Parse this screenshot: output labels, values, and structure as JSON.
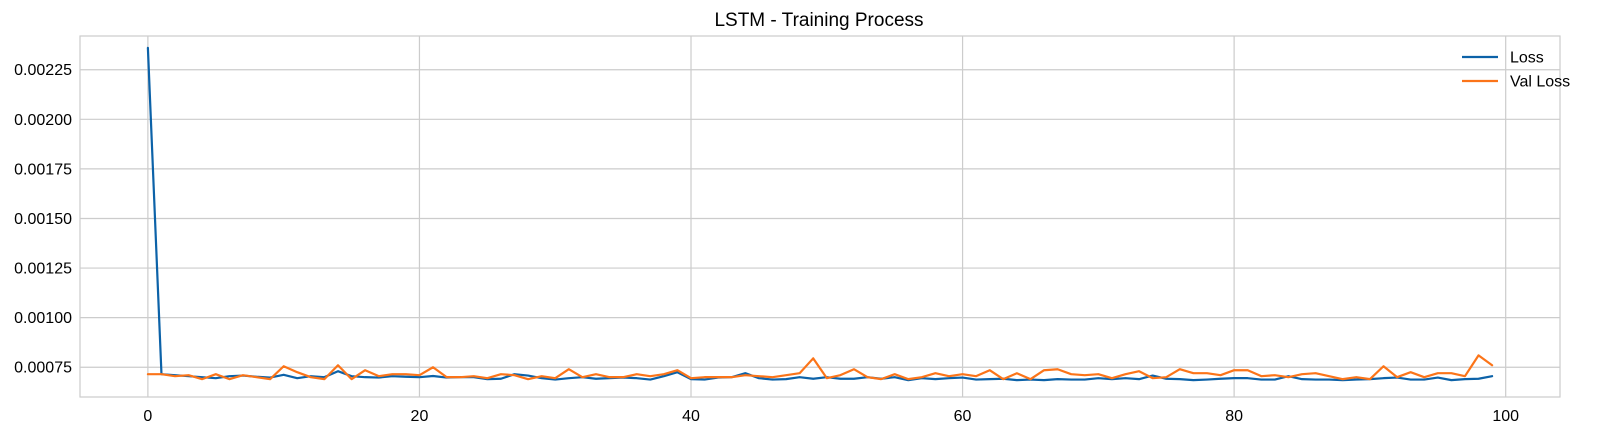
{
  "chart_data": {
    "type": "line",
    "title": "LSTM - Training Process",
    "xlabel": "",
    "ylabel": "",
    "xlim": [
      -5,
      104
    ],
    "ylim": [
      0.0006,
      0.00242
    ],
    "xticks": [
      0,
      20,
      40,
      60,
      80,
      100
    ],
    "xtick_labels": [
      "0",
      "20",
      "40",
      "60",
      "80",
      "100"
    ],
    "yticks": [
      0.00075,
      0.001,
      0.00125,
      0.0015,
      0.00175,
      0.002,
      0.00225
    ],
    "ytick_labels": [
      "0.00075",
      "0.00100",
      "0.00125",
      "0.00150",
      "0.00175",
      "0.00200",
      "0.00225"
    ],
    "grid": true,
    "legend_position": "top-right",
    "series": [
      {
        "name": "Loss",
        "color": "#0c62a8",
        "x_start": 0,
        "values": [
          0.00236,
          0.000715,
          0.00071,
          0.000705,
          0.0007,
          0.000695,
          0.000705,
          0.000708,
          0.000702,
          0.000698,
          0.000712,
          0.000695,
          0.000705,
          0.0007,
          0.00073,
          0.000705,
          0.0007,
          0.000698,
          0.000705,
          0.000702,
          0.0007,
          0.000706,
          0.000698,
          0.0007,
          0.0007,
          0.00069,
          0.000692,
          0.000715,
          0.000708,
          0.000695,
          0.000688,
          0.000695,
          0.0007,
          0.000692,
          0.000695,
          0.000698,
          0.000695,
          0.000688,
          0.000705,
          0.000725,
          0.00069,
          0.000688,
          0.000698,
          0.0007,
          0.00072,
          0.000695,
          0.000688,
          0.00069,
          0.0007,
          0.000692,
          0.0007,
          0.000692,
          0.000692,
          0.0007,
          0.000692,
          0.0007,
          0.000685,
          0.000695,
          0.00069,
          0.000695,
          0.000698,
          0.000688,
          0.00069,
          0.000692,
          0.000685,
          0.000688,
          0.000685,
          0.00069,
          0.000688,
          0.000688,
          0.000695,
          0.00069,
          0.000695,
          0.00069,
          0.000708,
          0.000692,
          0.00069,
          0.000685,
          0.000688,
          0.000692,
          0.000695,
          0.000695,
          0.000688,
          0.000688,
          0.000705,
          0.00069,
          0.000688,
          0.000688,
          0.000685,
          0.000688,
          0.00069,
          0.000695,
          0.000698,
          0.000688,
          0.000688,
          0.000698,
          0.000685,
          0.00069,
          0.000692,
          0.000705
        ]
      },
      {
        "name": "Val Loss",
        "color": "#fb7419",
        "x_start": 0,
        "values": [
          0.000715,
          0.000715,
          0.000705,
          0.00071,
          0.00069,
          0.000715,
          0.00069,
          0.00071,
          0.0007,
          0.00069,
          0.000755,
          0.000725,
          0.0007,
          0.00069,
          0.00076,
          0.00069,
          0.000735,
          0.000705,
          0.000715,
          0.000715,
          0.00071,
          0.00075,
          0.0007,
          0.0007,
          0.000705,
          0.000695,
          0.000715,
          0.00071,
          0.00069,
          0.000705,
          0.000695,
          0.00074,
          0.0007,
          0.000715,
          0.0007,
          0.0007,
          0.000715,
          0.000705,
          0.000715,
          0.000735,
          0.000695,
          0.0007,
          0.0007,
          0.0007,
          0.00071,
          0.000705,
          0.0007,
          0.00071,
          0.00072,
          0.000795,
          0.000695,
          0.00071,
          0.00074,
          0.0007,
          0.00069,
          0.000715,
          0.00069,
          0.0007,
          0.00072,
          0.000705,
          0.000715,
          0.000705,
          0.000735,
          0.00069,
          0.00072,
          0.00069,
          0.000735,
          0.00074,
          0.000715,
          0.00071,
          0.000715,
          0.000695,
          0.000715,
          0.00073,
          0.000695,
          0.0007,
          0.00074,
          0.00072,
          0.00072,
          0.00071,
          0.000735,
          0.000735,
          0.000705,
          0.00071,
          0.0007,
          0.000715,
          0.00072,
          0.000705,
          0.00069,
          0.0007,
          0.00069,
          0.000755,
          0.0007,
          0.000725,
          0.0007,
          0.00072,
          0.00072,
          0.000705,
          0.00081,
          0.00076
        ]
      }
    ]
  }
}
